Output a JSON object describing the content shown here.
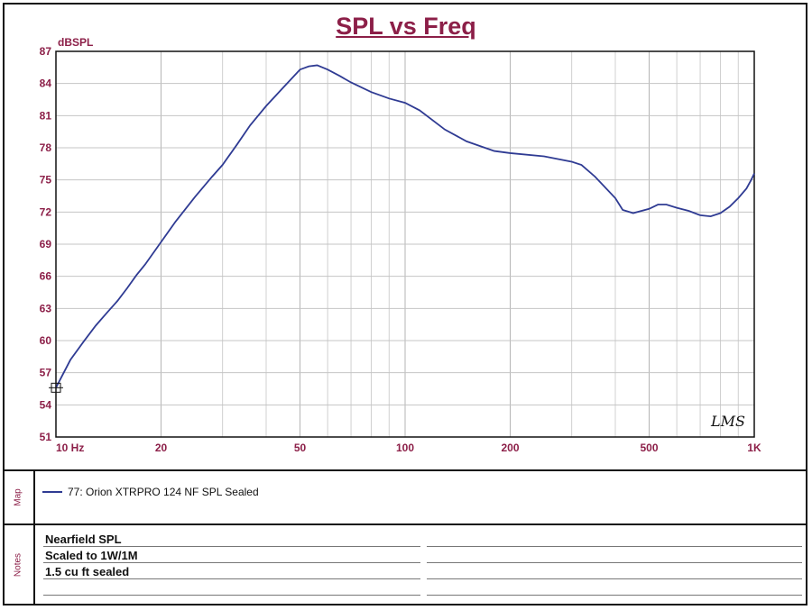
{
  "chart_data": {
    "type": "line",
    "title": "SPL vs Freq",
    "ylabel": "dBSPL",
    "xscale": "log",
    "xlim": [
      10,
      1000
    ],
    "ylim": [
      51,
      87
    ],
    "y_ticks": [
      "87",
      "84",
      "81",
      "78",
      "75",
      "72",
      "69",
      "66",
      "63",
      "60",
      "57",
      "54",
      "51"
    ],
    "x_ticks": [
      {
        "value": 10,
        "label": "10 Hz"
      },
      {
        "value": 20,
        "label": "20"
      },
      {
        "value": 50,
        "label": "50"
      },
      {
        "value": 100,
        "label": "100"
      },
      {
        "value": 200,
        "label": "200"
      },
      {
        "value": 500,
        "label": "500"
      },
      {
        "value": 1000,
        "label": "1K"
      }
    ],
    "grid": true,
    "series": [
      {
        "name": "77: Orion XTRPRO 124 NF SPL  Sealed",
        "color": "#2f3b93",
        "x": [
          10,
          11,
          12,
          13,
          14,
          15,
          16,
          17,
          18,
          20,
          22,
          25,
          28,
          30,
          33,
          36,
          40,
          45,
          50,
          53,
          56,
          60,
          65,
          70,
          80,
          90,
          100,
          110,
          130,
          150,
          180,
          200,
          250,
          300,
          320,
          350,
          400,
          420,
          450,
          500,
          530,
          560,
          600,
          650,
          700,
          750,
          800,
          850,
          900,
          950,
          980,
          1000
        ],
        "y": [
          55.6,
          58.2,
          59.9,
          61.4,
          62.6,
          63.7,
          64.9,
          66.1,
          67.1,
          69.2,
          71.1,
          73.4,
          75.3,
          76.4,
          78.3,
          80.1,
          81.9,
          83.7,
          85.3,
          85.6,
          85.7,
          85.3,
          84.7,
          84.1,
          83.2,
          82.6,
          82.2,
          81.5,
          79.7,
          78.6,
          77.7,
          77.5,
          77.2,
          76.7,
          76.4,
          75.3,
          73.3,
          72.2,
          71.9,
          72.3,
          72.7,
          72.7,
          72.4,
          72.1,
          71.7,
          71.6,
          71.9,
          72.5,
          73.3,
          74.2,
          75.0,
          75.6
        ]
      }
    ]
  },
  "legend": {
    "section_label": "Map",
    "entry": "77: Orion XTRPRO 124 NF SPL  Sealed"
  },
  "notes": {
    "section_label": "Notes",
    "lines": [
      "Nearfield SPL",
      "Scaled to 1W/1M",
      "1.5 cu ft sealed"
    ]
  },
  "watermark": "LMS"
}
